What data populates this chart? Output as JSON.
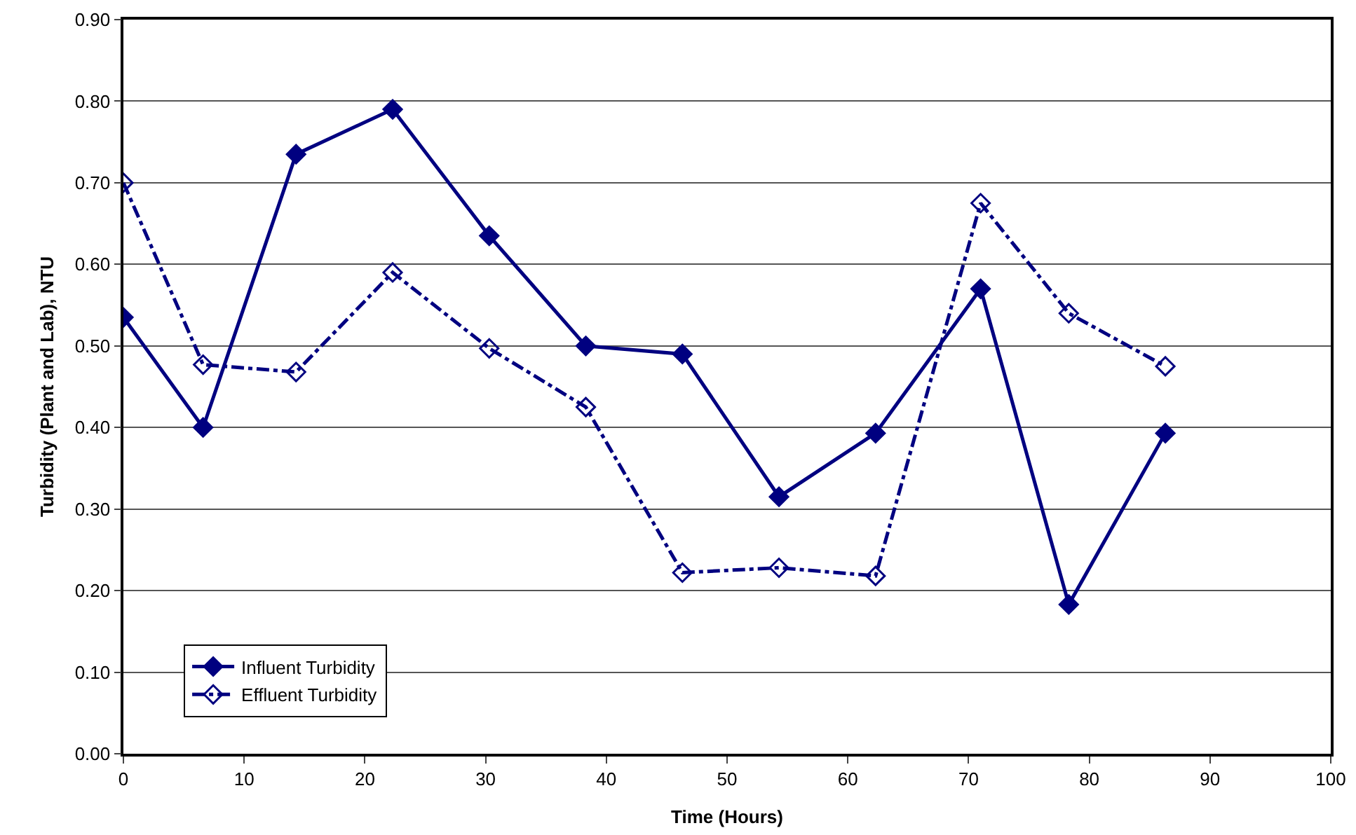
{
  "chart_data": {
    "type": "line",
    "xlabel": "Time (Hours)",
    "ylabel": "Turbidity (Plant and Lab), NTU",
    "x": [
      0,
      6.6,
      14.3,
      22.3,
      30.3,
      38.3,
      46.3,
      54.3,
      62.3,
      71.0,
      78.3,
      86.3
    ],
    "series": [
      {
        "name": "Influent Turbidity",
        "color": "#000080",
        "line_style": "solid",
        "marker": "diamond",
        "values": [
          0.535,
          0.4,
          0.735,
          0.79,
          0.635,
          0.5,
          0.49,
          0.315,
          0.393,
          0.57,
          0.183,
          0.393
        ]
      },
      {
        "name": "Effluent Turbidity",
        "color": "#000080",
        "line_style": "dashed",
        "marker": "diamond",
        "values": [
          0.7,
          0.477,
          0.468,
          0.59,
          0.497,
          0.425,
          0.222,
          0.228,
          0.218,
          0.675,
          0.54,
          0.475
        ]
      }
    ],
    "xlim": [
      0,
      100
    ],
    "xticks": [
      0,
      10,
      20,
      30,
      40,
      50,
      60,
      70,
      80,
      90,
      100
    ],
    "ylim": [
      0,
      0.9
    ],
    "yticks": [
      {
        "value": 0,
        "label": "0.00"
      },
      {
        "value": 0.1,
        "label": "0.10"
      },
      {
        "value": 0.2,
        "label": "0.20"
      },
      {
        "value": 0.3,
        "label": "0.30"
      },
      {
        "value": 0.4,
        "label": "0.40"
      },
      {
        "value": 0.5,
        "label": "0.50"
      },
      {
        "value": 0.6,
        "label": "0.60"
      },
      {
        "value": 0.7,
        "label": "0.70"
      },
      {
        "value": 0.8,
        "label": "0.80"
      },
      {
        "value": 0.9,
        "label": "0.90"
      }
    ],
    "grid": "y",
    "legend": "bottom left"
  }
}
